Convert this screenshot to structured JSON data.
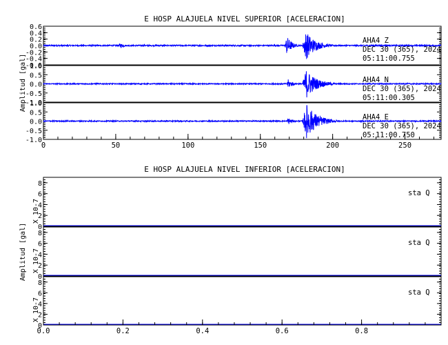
{
  "chart_data": [
    {
      "type": "line",
      "title": "E HOSP ALAJUELA NIVEL SUPERIOR [ACELERACION]",
      "ylabel": "Amplitud [gal]",
      "xlabel": "",
      "xlim": [
        0,
        275
      ],
      "x_ticks": [
        0,
        50,
        100,
        150,
        200,
        250
      ],
      "x_tick_labels": [
        "0",
        "50",
        "100",
        "150",
        "200",
        "250"
      ],
      "grid": false,
      "line_color": "#0000ff",
      "panels": [
        {
          "ylim": [
            -0.6,
            0.6
          ],
          "y_tick_labels": [
            "0.6",
            "0.4",
            "0.2",
            "0.0",
            "-0.2",
            "-0.4",
            "-0.6"
          ],
          "label_lines": [
            "AHA4   Z",
            "DEC 30 (365), 2024",
            "05:11:00.755"
          ],
          "noise_amplitude": 0.02,
          "bursts": [
            {
              "start": 52,
              "end": 62,
              "amplitude": 0.08
            },
            {
              "start": 167,
              "end": 178,
              "amplitude": 0.3
            },
            {
              "start": 179,
              "end": 200,
              "amplitude": 0.45
            }
          ]
        },
        {
          "ylim": [
            -1.0,
            1.0
          ],
          "y_tick_labels": [
            "1.0",
            "0.5",
            "0.0",
            "-0.5",
            "-1.0"
          ],
          "label_lines": [
            "AHA4   N",
            "DEC 30 (365), 2024",
            "05:11:00.305"
          ],
          "noise_amplitude": 0.03,
          "bursts": [
            {
              "start": 168,
              "end": 178,
              "amplitude": 0.25
            },
            {
              "start": 179,
              "end": 202,
              "amplitude": 0.8
            }
          ]
        },
        {
          "ylim": [
            -1.0,
            1.0
          ],
          "y_tick_labels": [
            "1.0",
            "0.5",
            "0.0",
            "-0.5",
            "-1.0"
          ],
          "label_lines": [
            "AHA4   E",
            "DEC 30 (365), 2024",
            "05:11:00.750"
          ],
          "noise_amplitude": 0.03,
          "bursts": [
            {
              "start": 168,
              "end": 178,
              "amplitude": 0.2
            },
            {
              "start": 179,
              "end": 203,
              "amplitude": 0.95
            }
          ]
        }
      ]
    },
    {
      "type": "line",
      "title": "E HOSP ALAJUELA NIVEL INFERIOR [ACELERACION]",
      "ylabel": "Amplitud [gal]",
      "xlabel": "",
      "xlim": [
        0,
        1
      ],
      "x_ticks": [
        0.0,
        0.2,
        0.4,
        0.6,
        0.8
      ],
      "x_tick_labels": [
        "0.0",
        "0.2",
        "0.4",
        "0.6",
        "0.8"
      ],
      "grid": false,
      "line_color": "#0000ff",
      "panels": [
        {
          "ylim": [
            0,
            9
          ],
          "y_tick_labels": [
            "8",
            "6",
            "4",
            "2",
            "0"
          ],
          "scale_label": "X 10-7",
          "label_lines": [
            "sta   Q"
          ],
          "values": [
            0,
            0
          ]
        },
        {
          "ylim": [
            0,
            9
          ],
          "y_tick_labels": [
            "8",
            "6",
            "4",
            "2",
            "0"
          ],
          "scale_label": "X 10-7",
          "label_lines": [
            "sta   Q"
          ],
          "values": [
            0,
            0
          ]
        },
        {
          "ylim": [
            0,
            9
          ],
          "y_tick_labels": [
            "8",
            "6",
            "4",
            "2",
            "0"
          ],
          "scale_label": "X 10-7",
          "label_lines": [
            "sta   Q"
          ],
          "values": [
            0,
            0
          ]
        }
      ]
    }
  ]
}
